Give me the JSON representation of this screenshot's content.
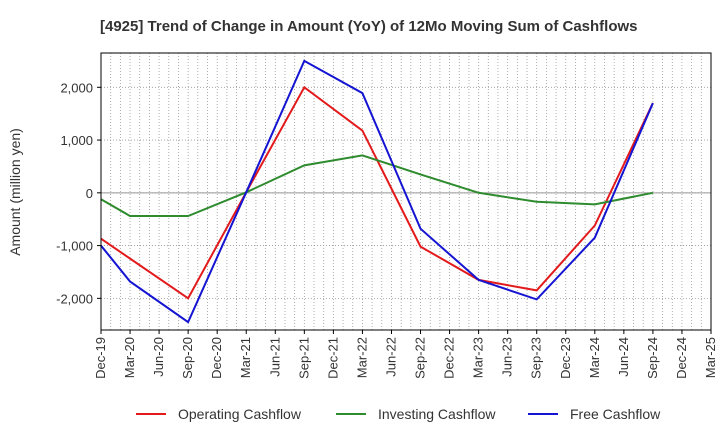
{
  "chart_data": {
    "type": "line",
    "title": "[4925]  Trend of Change in Amount (YoY) of 12Mo Moving Sum of Cashflows",
    "xlabel": "",
    "ylabel": "Amount (million yen)",
    "categories": [
      "Dec-19",
      "Mar-20",
      "Jun-20",
      "Sep-20",
      "Dec-20",
      "Mar-21",
      "Jun-21",
      "Sep-21",
      "Dec-21",
      "Mar-22",
      "Jun-22",
      "Sep-22",
      "Dec-22",
      "Mar-23",
      "Jun-23",
      "Sep-23",
      "Dec-23",
      "Mar-24",
      "Jun-24",
      "Sep-24",
      "Dec-24",
      "Mar-25"
    ],
    "ylim": [
      -2600,
      2650
    ],
    "yticks": [
      -2000,
      -1000,
      0,
      1000,
      2000
    ],
    "ytick_labels": [
      "-2,000",
      "-1,000",
      "0",
      "1,000",
      "2,000"
    ],
    "grid": true,
    "legend_position": "bottom",
    "series": [
      {
        "name": "Operating Cashflow",
        "color": "#e31a1c",
        "values": [
          -870,
          null,
          null,
          -2000,
          null,
          10,
          null,
          2000,
          null,
          1180,
          null,
          -1020,
          null,
          -1650,
          null,
          -1850,
          null,
          -620,
          null,
          1700,
          null,
          null
        ]
      },
      {
        "name": "Investing Cashflow",
        "color": "#2e8b2e",
        "values": [
          -120,
          -440,
          null,
          -440,
          null,
          10,
          null,
          520,
          null,
          710,
          null,
          350,
          null,
          0,
          null,
          -170,
          null,
          -220,
          null,
          0,
          null,
          null
        ]
      },
      {
        "name": "Free Cashflow",
        "color": "#1414d2",
        "values": [
          -1000,
          -1680,
          null,
          -2450,
          null,
          10,
          null,
          2500,
          null,
          1890,
          null,
          -680,
          null,
          -1650,
          null,
          -2020,
          null,
          -850,
          null,
          1700,
          null,
          null
        ]
      }
    ]
  }
}
